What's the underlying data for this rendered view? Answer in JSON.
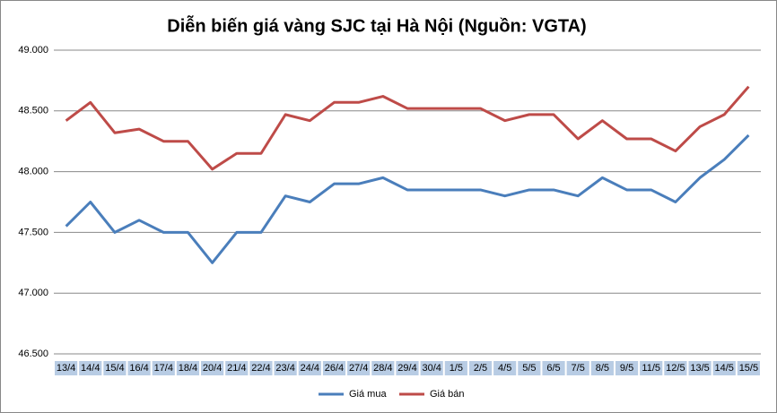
{
  "chart_data": {
    "type": "line",
    "title": "Diễn biến giá vàng SJC tại Hà Nội (Nguồn: VGTA)",
    "categories": [
      "13/4",
      "14/4",
      "15/4",
      "16/4",
      "17/4",
      "18/4",
      "20/4",
      "21/4",
      "22/4",
      "23/4",
      "24/4",
      "26/4",
      "27/4",
      "28/4",
      "29/4",
      "30/4",
      "1/5",
      "2/5",
      "4/5",
      "5/5",
      "6/5",
      "7/5",
      "8/5",
      "9/5",
      "11/5",
      "12/5",
      "13/5",
      "14/5",
      "15/5"
    ],
    "series": [
      {
        "name": "Giá mua",
        "color": "#4a7ebb",
        "values": [
          47550,
          47750,
          47500,
          47600,
          47500,
          47500,
          47250,
          47500,
          47500,
          47800,
          47750,
          47900,
          47900,
          47950,
          47850,
          47850,
          47850,
          47850,
          47800,
          47850,
          47850,
          47800,
          47950,
          47850,
          47850,
          47750,
          47950,
          48100,
          48300
        ]
      },
      {
        "name": "Giá bán",
        "color": "#be4b48",
        "values": [
          48420,
          48570,
          48320,
          48350,
          48250,
          48250,
          48020,
          48150,
          48150,
          48470,
          48420,
          48570,
          48570,
          48620,
          48520,
          48520,
          48520,
          48520,
          48420,
          48470,
          48470,
          48270,
          48420,
          48270,
          48270,
          48170,
          48370,
          48470,
          48700
        ]
      }
    ],
    "ylim": [
      46500,
      49000
    ],
    "yticks": [
      {
        "value": 46500,
        "label": "46.500"
      },
      {
        "value": 47000,
        "label": "47.000"
      },
      {
        "value": 47500,
        "label": "47.500"
      },
      {
        "value": 48000,
        "label": "48.000"
      },
      {
        "value": 48500,
        "label": "48.500"
      },
      {
        "value": 49000,
        "label": "49.000"
      }
    ],
    "grid": true,
    "legend": "bottom"
  }
}
